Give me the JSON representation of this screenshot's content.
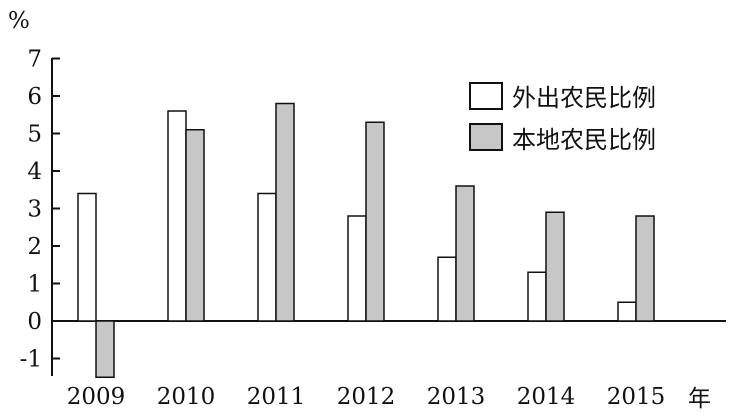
{
  "chart_data": {
    "type": "bar",
    "title": "",
    "ylabel": "%",
    "xlabel": "年",
    "categories": [
      "2009",
      "2010",
      "2011",
      "2012",
      "2013",
      "2014",
      "2015"
    ],
    "ylim": [
      -1.5,
      7
    ],
    "yticks": [
      -1,
      0,
      1,
      2,
      3,
      4,
      5,
      6,
      7
    ],
    "ytick_labels": [
      "-1",
      "0",
      "1",
      "2",
      "3",
      "4",
      "5",
      "6",
      "7"
    ],
    "grid": false,
    "legend_position": "top-right",
    "series": [
      {
        "name": "外出农民比例",
        "color": "#ffffff",
        "values": [
          3.4,
          5.6,
          3.4,
          2.8,
          1.7,
          1.3,
          0.5
        ]
      },
      {
        "name": "本地农民比例",
        "color": "#c7c7c7",
        "values": [
          -1.5,
          5.1,
          5.8,
          5.3,
          3.6,
          2.9,
          2.8
        ]
      }
    ]
  }
}
